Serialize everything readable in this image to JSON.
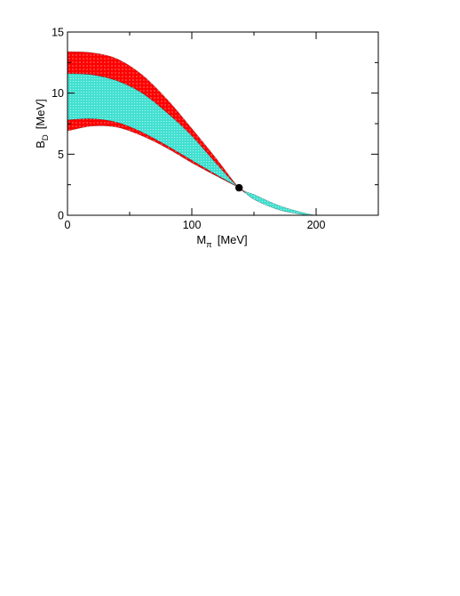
{
  "chart_data": {
    "type": "area",
    "title": "",
    "xlabel": {
      "main": "M",
      "sub": "π",
      "unit": "[MeV]"
    },
    "ylabel": {
      "main": "B",
      "sub": "D",
      "unit": "[MeV]"
    },
    "xlim": [
      0,
      250
    ],
    "ylim": [
      0,
      15
    ],
    "x_ticks": [
      0,
      100,
      200
    ],
    "y_ticks": [
      0,
      5,
      10,
      15
    ],
    "grid": false,
    "legend": "none",
    "series": [
      {
        "style": "outer-band",
        "color": "#ff0000",
        "x": [
          0,
          20,
          40,
          60,
          80,
          100,
          120,
          138,
          150,
          170,
          190,
          200
        ],
        "lower": [
          6.9,
          7.3,
          7.2,
          6.5,
          5.5,
          4.3,
          3.2,
          2.25,
          1.5,
          0.6,
          0.1,
          0.0
        ],
        "upper": [
          13.4,
          13.3,
          12.8,
          11.5,
          9.5,
          7.1,
          4.6,
          2.25,
          1.5,
          0.6,
          0.1,
          0.0
        ]
      },
      {
        "style": "inner-band",
        "color": "#40e0d0",
        "x": [
          0,
          20,
          40,
          60,
          80,
          100,
          120,
          138,
          150,
          170,
          190,
          200
        ],
        "lower": [
          7.8,
          7.9,
          7.6,
          6.8,
          5.7,
          4.5,
          3.3,
          2.25,
          1.3,
          0.45,
          0.05,
          0.0
        ],
        "upper": [
          11.6,
          11.5,
          11.0,
          10.0,
          8.4,
          6.5,
          4.2,
          2.25,
          1.7,
          0.8,
          0.2,
          0.0
        ]
      }
    ],
    "points": [
      {
        "x": 138,
        "y": 2.25,
        "color": "#000000"
      }
    ]
  }
}
